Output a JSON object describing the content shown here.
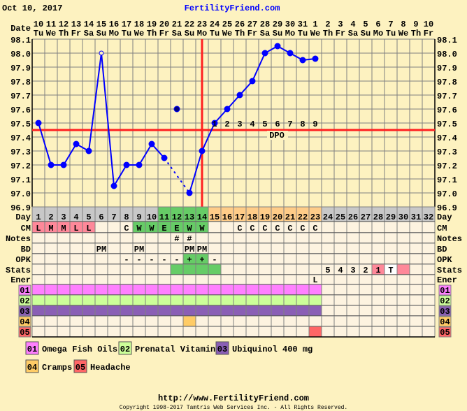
{
  "header": {
    "date": "Oct 10, 2017",
    "site": "FertilityFriend.com"
  },
  "footer": {
    "url": "http://www.FertilityFriend.com",
    "copyright": "Copyright 1998-2017 Tamtris Web Services Inc. - All Rights Reserved."
  },
  "chart_data": {
    "type": "line",
    "date_label": "Date",
    "dates": [
      "10",
      "11",
      "12",
      "13",
      "14",
      "15",
      "16",
      "17",
      "18",
      "19",
      "20",
      "21",
      "22",
      "23",
      "24",
      "25",
      "26",
      "27",
      "28",
      "29",
      "30",
      "31",
      "1",
      "2",
      "3",
      "4",
      "5",
      "6",
      "7",
      "8",
      "9",
      "10"
    ],
    "weekdays": [
      "Tu",
      "We",
      "Th",
      "Fr",
      "Sa",
      "Su",
      "Mo",
      "Tu",
      "We",
      "Th",
      "Fr",
      "Sa",
      "Su",
      "Mo",
      "Tu",
      "We",
      "Th",
      "Fr",
      "Sa",
      "Su",
      "Mo",
      "Tu",
      "We",
      "Th",
      "Fr",
      "Sa",
      "Su",
      "Mo",
      "Tu",
      "We",
      "Th",
      "Fr"
    ],
    "x": [
      1,
      2,
      3,
      4,
      5,
      6,
      7,
      8,
      9,
      10,
      11,
      12,
      13,
      14,
      15,
      16,
      17,
      18,
      19,
      20,
      21,
      22,
      23
    ],
    "temps": [
      97.5,
      97.2,
      97.2,
      97.35,
      97.3,
      98.0,
      97.05,
      97.2,
      97.2,
      97.35,
      97.25,
      97.6,
      97.0,
      97.3,
      97.5,
      97.6,
      97.7,
      97.8,
      98.0,
      98.05,
      98.0,
      97.95,
      97.96
    ],
    "hollow_point_days": [
      6
    ],
    "unconnected_days": [
      12
    ],
    "dashed_segment": [
      11,
      13
    ],
    "ylim": [
      96.9,
      98.1
    ],
    "yticks": [
      "98.1",
      "98.0",
      "97.9",
      "97.8",
      "97.7",
      "97.6",
      "97.5",
      "97.4",
      "97.3",
      "97.2",
      "97.1",
      "97.0",
      "96.9"
    ],
    "grid": true,
    "coverline": 97.45,
    "ovulation_day": 14,
    "dpo_label": "DPO",
    "dpo_numbers": [
      "1",
      "2",
      "3",
      "4",
      "5",
      "6",
      "7",
      "8",
      "9"
    ],
    "line_color": "#0000ff",
    "coverline_color": "#ff2020"
  },
  "rows": {
    "labels": {
      "day": "Day",
      "cm": "CM",
      "notes": "Notes",
      "bd": "BD",
      "opk": "OPK",
      "stats": "Stats",
      "ener": "Ener"
    },
    "day_colors": {
      "default": "#c8c8c8",
      "fertile": "#66cc66",
      "luteal": "#ffcc88",
      "fertile_days": [
        11,
        12,
        13,
        14
      ],
      "luteal_days": [
        15,
        16,
        17,
        18,
        19,
        20,
        21,
        22,
        23
      ]
    },
    "cm": [
      "L",
      "M",
      "M",
      "L",
      "L",
      "",
      "",
      "C",
      "W",
      "W",
      "E",
      "E",
      "W",
      "W",
      "",
      "",
      "C",
      "C",
      "C",
      "C",
      "C",
      "C",
      "C"
    ],
    "cm_colors": {
      "menses": "#ff8899",
      "fertile": "#66cc66",
      "menses_days": [
        1,
        2,
        3,
        4,
        5
      ],
      "fertile_days": [
        9,
        10,
        11,
        12,
        13,
        14
      ]
    },
    "notes": [
      "",
      "",
      "",
      "",
      "",
      "",
      "",
      "",
      "",
      "",
      "",
      "#",
      "#"
    ],
    "bd": [
      "",
      "",
      "",
      "",
      "",
      "PM",
      "",
      "",
      "PM",
      "",
      "",
      "",
      "PM",
      "PM"
    ],
    "opk": [
      "",
      "",
      "",
      "",
      "",
      "",
      "",
      "-",
      "-",
      "-",
      "-",
      "-",
      "+",
      "+",
      "-"
    ],
    "opk_positive_days": [
      13,
      14
    ],
    "stats": [
      "",
      "",
      "",
      "",
      "",
      "",
      "",
      "",
      "",
      "",
      "",
      "",
      "",
      "",
      "",
      "",
      "",
      "",
      "",
      "",
      "",
      "",
      "",
      "5",
      "4",
      "3",
      "2",
      "1",
      "T",
      ""
    ],
    "stats_green_days": [
      12,
      13,
      14,
      15
    ],
    "stats_pink_days": [
      28,
      30
    ],
    "stats_white_days": [
      29
    ],
    "ener": [
      "",
      "",
      "",
      "",
      "",
      "",
      "",
      "",
      "",
      "",
      "",
      "",
      "",
      "",
      "",
      "",
      "",
      "",
      "",
      "",
      "",
      "",
      "L"
    ],
    "meds": [
      {
        "code": "01",
        "label": "Omega Fish Oils",
        "color": "#ff80ff",
        "days": [
          1,
          23
        ]
      },
      {
        "code": "02",
        "label": "Prenatal Vitamin",
        "color": "#ccff99",
        "days": [
          1,
          23
        ]
      },
      {
        "code": "03",
        "label": "Ubiquinol 400 mg",
        "color": "#8a5fb5",
        "days": [
          1,
          23
        ]
      },
      {
        "code": "04",
        "label": "Cramps",
        "color": "#ffcc66",
        "days": [
          13,
          13
        ]
      },
      {
        "code": "05",
        "label": "Headache",
        "color": "#ff6666",
        "days": [
          23,
          23
        ]
      }
    ]
  }
}
